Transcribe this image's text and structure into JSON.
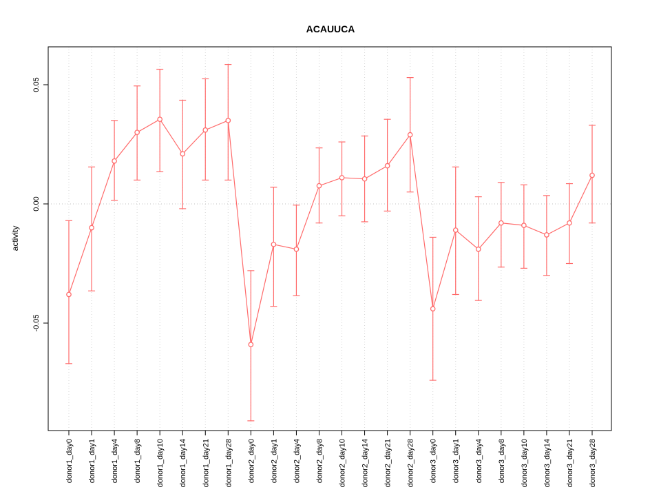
{
  "title": "ACAUUCA",
  "chart_data": {
    "type": "line",
    "title": "ACAUUCA",
    "xlabel": "",
    "ylabel": "activity",
    "legend": "none",
    "grid": "vertical dotted gridlines at each category; dotted horizontal line at y=0",
    "point_style": "open-circle",
    "error_bars": true,
    "series_color": "#FF6A6A",
    "grid_color": "#D3D3D3",
    "zero_line_color": "#BFBFBF",
    "ylim": [
      -0.095,
      0.066
    ],
    "yticks": [
      0.05,
      0.0,
      -0.05
    ],
    "ytick_labels": [
      "0.05",
      "0.00",
      "-0.05"
    ],
    "categories": [
      "donor1_day0",
      "donor1_day1",
      "donor1_day4",
      "donor1_day8",
      "donor1_day10",
      "donor1_day14",
      "donor1_day21",
      "donor1_day28",
      "donor2_day0",
      "donor2_day1",
      "donor2_day4",
      "donor2_day8",
      "donor2_day10",
      "donor2_day14",
      "donor2_day21",
      "donor2_day28",
      "donor3_day0",
      "donor3_day1",
      "donor3_day4",
      "donor3_day8",
      "donor3_day10",
      "donor3_day14",
      "donor3_day21",
      "donor3_day28"
    ],
    "series": [
      {
        "name": "activity",
        "values": [
          -0.038,
          -0.01,
          0.018,
          0.03,
          0.0355,
          0.021,
          0.031,
          0.035,
          -0.059,
          -0.017,
          -0.019,
          0.0076,
          0.011,
          0.0105,
          0.016,
          0.029,
          -0.044,
          -0.011,
          -0.019,
          -0.008,
          -0.009,
          -0.013,
          -0.008,
          0.012
        ],
        "upper": [
          -0.007,
          0.0155,
          0.035,
          0.0495,
          0.0565,
          0.0435,
          0.0525,
          0.0585,
          -0.028,
          0.007,
          -0.0005,
          0.0235,
          0.026,
          0.0285,
          0.0355,
          0.053,
          -0.014,
          0.0155,
          0.003,
          0.009,
          0.008,
          0.0035,
          0.0085,
          0.033
        ],
        "lower": [
          -0.067,
          -0.0365,
          0.0015,
          0.01,
          0.0135,
          -0.002,
          0.01,
          0.01,
          -0.091,
          -0.043,
          -0.0385,
          -0.008,
          -0.005,
          -0.0075,
          -0.003,
          0.005,
          -0.074,
          -0.038,
          -0.0405,
          -0.0265,
          -0.027,
          -0.03,
          -0.025,
          -0.008
        ]
      }
    ]
  }
}
